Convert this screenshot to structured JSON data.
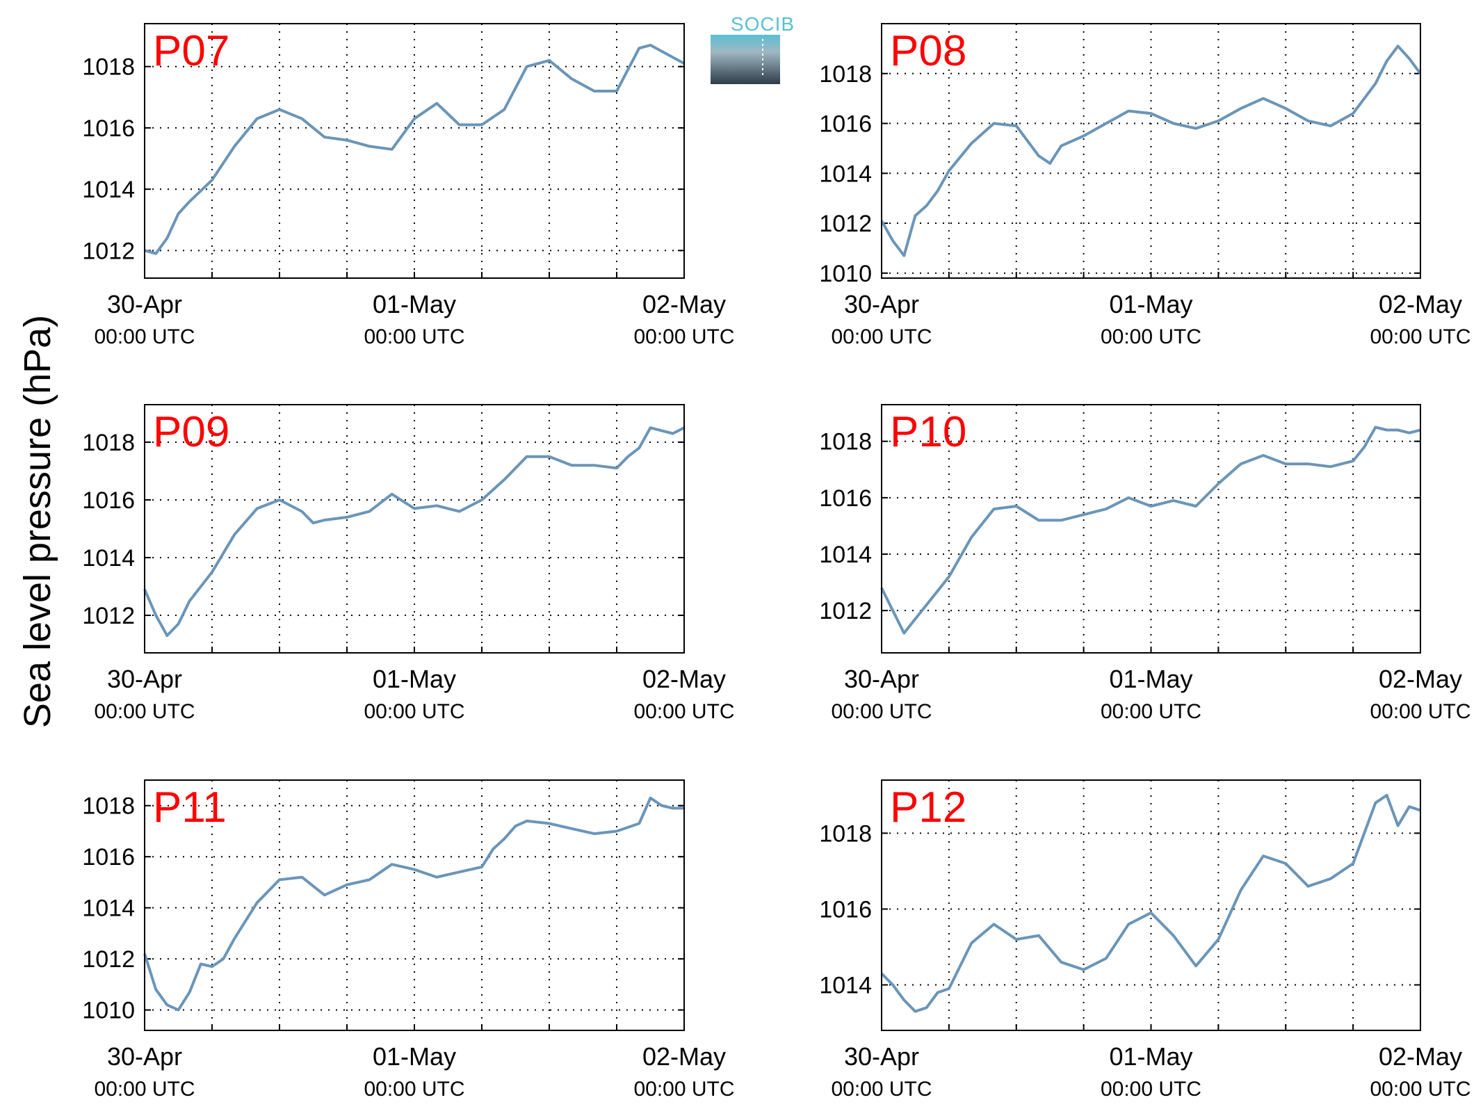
{
  "figure": {
    "ylabel": "Sea level pressure (hPa)",
    "logo_text": "SOCIB",
    "line_color": "#6a95b8",
    "title_color": "#ff0000"
  },
  "chart_data": [
    {
      "type": "line",
      "title": "P07",
      "xlabel": "",
      "ylabel": "Sea level pressure (hPa)",
      "x_ticks": [
        {
          "date": "30-Apr",
          "time": "00:00 UTC"
        },
        {
          "date": "01-May",
          "time": "00:00 UTC"
        },
        {
          "date": "02-May",
          "time": "00:00 UTC"
        }
      ],
      "xlim_hours": [
        0,
        48
      ],
      "ylim": [
        1011.1,
        1019.4
      ],
      "yticks": [
        1012,
        1014,
        1016,
        1018
      ],
      "grid": true,
      "series": [
        {
          "x_hours": [
            0,
            1,
            2,
            3,
            4,
            6,
            8,
            10,
            12,
            14,
            16,
            18,
            20,
            22,
            24,
            26,
            28,
            30,
            32,
            34,
            36,
            38,
            40,
            42,
            44,
            45,
            46,
            47,
            48
          ],
          "values": [
            1012.0,
            1011.9,
            1012.4,
            1013.2,
            1013.6,
            1014.3,
            1015.4,
            1016.3,
            1016.6,
            1016.3,
            1015.7,
            1015.6,
            1015.4,
            1015.3,
            1016.3,
            1016.8,
            1016.1,
            1016.1,
            1016.6,
            1018.0,
            1018.2,
            1017.6,
            1017.2,
            1017.2,
            1018.6,
            1018.7,
            1018.5,
            1018.3,
            1018.1
          ]
        }
      ]
    },
    {
      "type": "line",
      "title": "P08",
      "xlabel": "",
      "ylabel": "Sea level pressure (hPa)",
      "x_ticks": [
        {
          "date": "30-Apr",
          "time": "00:00 UTC"
        },
        {
          "date": "01-May",
          "time": "00:00 UTC"
        },
        {
          "date": "02-May",
          "time": "00:00 UTC"
        }
      ],
      "xlim_hours": [
        0,
        48
      ],
      "ylim": [
        1009.8,
        1020.0
      ],
      "yticks": [
        1010,
        1012,
        1014,
        1016,
        1018
      ],
      "grid": true,
      "series": [
        {
          "x_hours": [
            0,
            1,
            2,
            3,
            4,
            5,
            6,
            8,
            10,
            12,
            14,
            15,
            16,
            18,
            20,
            22,
            24,
            26,
            28,
            30,
            32,
            34,
            36,
            38,
            40,
            42,
            44,
            45,
            46,
            47,
            48
          ],
          "values": [
            1012.1,
            1011.3,
            1010.7,
            1012.3,
            1012.7,
            1013.3,
            1014.1,
            1015.2,
            1016.0,
            1015.9,
            1014.7,
            1014.4,
            1015.1,
            1015.5,
            1016.0,
            1016.5,
            1016.4,
            1016.0,
            1015.8,
            1016.1,
            1016.6,
            1017.0,
            1016.6,
            1016.1,
            1015.9,
            1016.4,
            1017.6,
            1018.5,
            1019.1,
            1018.6,
            1018.0
          ]
        }
      ]
    },
    {
      "type": "line",
      "title": "P09",
      "xlabel": "",
      "ylabel": "Sea level pressure (hPa)",
      "x_ticks": [
        {
          "date": "30-Apr",
          "time": "00:00 UTC"
        },
        {
          "date": "01-May",
          "time": "00:00 UTC"
        },
        {
          "date": "02-May",
          "time": "00:00 UTC"
        }
      ],
      "xlim_hours": [
        0,
        48
      ],
      "ylim": [
        1010.7,
        1019.3
      ],
      "yticks": [
        1012,
        1014,
        1016,
        1018
      ],
      "grid": true,
      "series": [
        {
          "x_hours": [
            0,
            1,
            2,
            3,
            4,
            6,
            8,
            10,
            12,
            14,
            15,
            16,
            18,
            20,
            22,
            24,
            26,
            28,
            30,
            32,
            34,
            36,
            38,
            40,
            42,
            43,
            44,
            45,
            46,
            47,
            48
          ],
          "values": [
            1012.9,
            1012.0,
            1011.3,
            1011.7,
            1012.5,
            1013.5,
            1014.8,
            1015.7,
            1016.0,
            1015.6,
            1015.2,
            1015.3,
            1015.4,
            1015.6,
            1016.2,
            1015.7,
            1015.8,
            1015.6,
            1016.0,
            1016.7,
            1017.5,
            1017.5,
            1017.2,
            1017.2,
            1017.1,
            1017.5,
            1017.8,
            1018.5,
            1018.4,
            1018.3,
            1018.5
          ]
        }
      ]
    },
    {
      "type": "line",
      "title": "P10",
      "xlabel": "",
      "ylabel": "Sea level pressure (hPa)",
      "x_ticks": [
        {
          "date": "30-Apr",
          "time": "00:00 UTC"
        },
        {
          "date": "01-May",
          "time": "00:00 UTC"
        },
        {
          "date": "02-May",
          "time": "00:00 UTC"
        }
      ],
      "xlim_hours": [
        0,
        48
      ],
      "ylim": [
        1010.5,
        1019.3
      ],
      "yticks": [
        1012,
        1014,
        1016,
        1018
      ],
      "grid": true,
      "series": [
        {
          "x_hours": [
            0,
            1,
            2,
            3,
            4,
            6,
            8,
            10,
            12,
            14,
            16,
            18,
            20,
            22,
            24,
            26,
            28,
            30,
            32,
            34,
            36,
            38,
            40,
            42,
            43,
            44,
            45,
            46,
            47,
            48
          ],
          "values": [
            1012.8,
            1012.0,
            1011.2,
            1011.7,
            1012.2,
            1013.2,
            1014.6,
            1015.6,
            1015.7,
            1015.2,
            1015.2,
            1015.4,
            1015.6,
            1016.0,
            1015.7,
            1015.9,
            1015.7,
            1016.5,
            1017.2,
            1017.5,
            1017.2,
            1017.2,
            1017.1,
            1017.3,
            1017.8,
            1018.5,
            1018.4,
            1018.4,
            1018.3,
            1018.4
          ]
        }
      ]
    },
    {
      "type": "line",
      "title": "P11",
      "xlabel": "",
      "ylabel": "Sea level pressure (hPa)",
      "x_ticks": [
        {
          "date": "30-Apr",
          "time": "00:00 UTC"
        },
        {
          "date": "01-May",
          "time": "00:00 UTC"
        },
        {
          "date": "02-May",
          "time": "00:00 UTC"
        }
      ],
      "xlim_hours": [
        0,
        48
      ],
      "ylim": [
        1009.2,
        1019.0
      ],
      "yticks": [
        1010,
        1012,
        1014,
        1016,
        1018
      ],
      "grid": true,
      "series": [
        {
          "x_hours": [
            0,
            1,
            2,
            3,
            4,
            5,
            6,
            7,
            8,
            10,
            12,
            14,
            16,
            18,
            20,
            22,
            24,
            26,
            28,
            30,
            31,
            32,
            33,
            34,
            36,
            38,
            40,
            42,
            44,
            45,
            46,
            47,
            48
          ],
          "values": [
            1012.2,
            1010.8,
            1010.2,
            1010.0,
            1010.7,
            1011.8,
            1011.7,
            1012.0,
            1012.8,
            1014.2,
            1015.1,
            1015.2,
            1014.5,
            1014.9,
            1015.1,
            1015.7,
            1015.5,
            1015.2,
            1015.4,
            1015.6,
            1016.3,
            1016.7,
            1017.2,
            1017.4,
            1017.3,
            1017.1,
            1016.9,
            1017.0,
            1017.3,
            1018.3,
            1018.0,
            1017.9,
            1017.9
          ]
        }
      ]
    },
    {
      "type": "line",
      "title": "P12",
      "xlabel": "",
      "ylabel": "Sea level pressure (hPa)",
      "x_ticks": [
        {
          "date": "30-Apr",
          "time": "00:00 UTC"
        },
        {
          "date": "01-May",
          "time": "00:00 UTC"
        },
        {
          "date": "02-May",
          "time": "00:00 UTC"
        }
      ],
      "xlim_hours": [
        0,
        48
      ],
      "ylim": [
        1012.8,
        1019.4
      ],
      "yticks": [
        1014,
        1016,
        1018
      ],
      "grid": true,
      "series": [
        {
          "x_hours": [
            0,
            1,
            2,
            3,
            4,
            5,
            6,
            8,
            10,
            12,
            14,
            16,
            18,
            20,
            22,
            24,
            26,
            28,
            30,
            32,
            34,
            36,
            38,
            40,
            42,
            44,
            45,
            46,
            47,
            48
          ],
          "values": [
            1014.3,
            1014.0,
            1013.6,
            1013.3,
            1013.4,
            1013.8,
            1013.9,
            1015.1,
            1015.6,
            1015.2,
            1015.3,
            1014.6,
            1014.4,
            1014.7,
            1015.6,
            1015.9,
            1015.3,
            1014.5,
            1015.2,
            1016.5,
            1017.4,
            1017.2,
            1016.6,
            1016.8,
            1017.2,
            1018.8,
            1019.0,
            1018.2,
            1018.7,
            1018.6
          ]
        }
      ]
    }
  ]
}
